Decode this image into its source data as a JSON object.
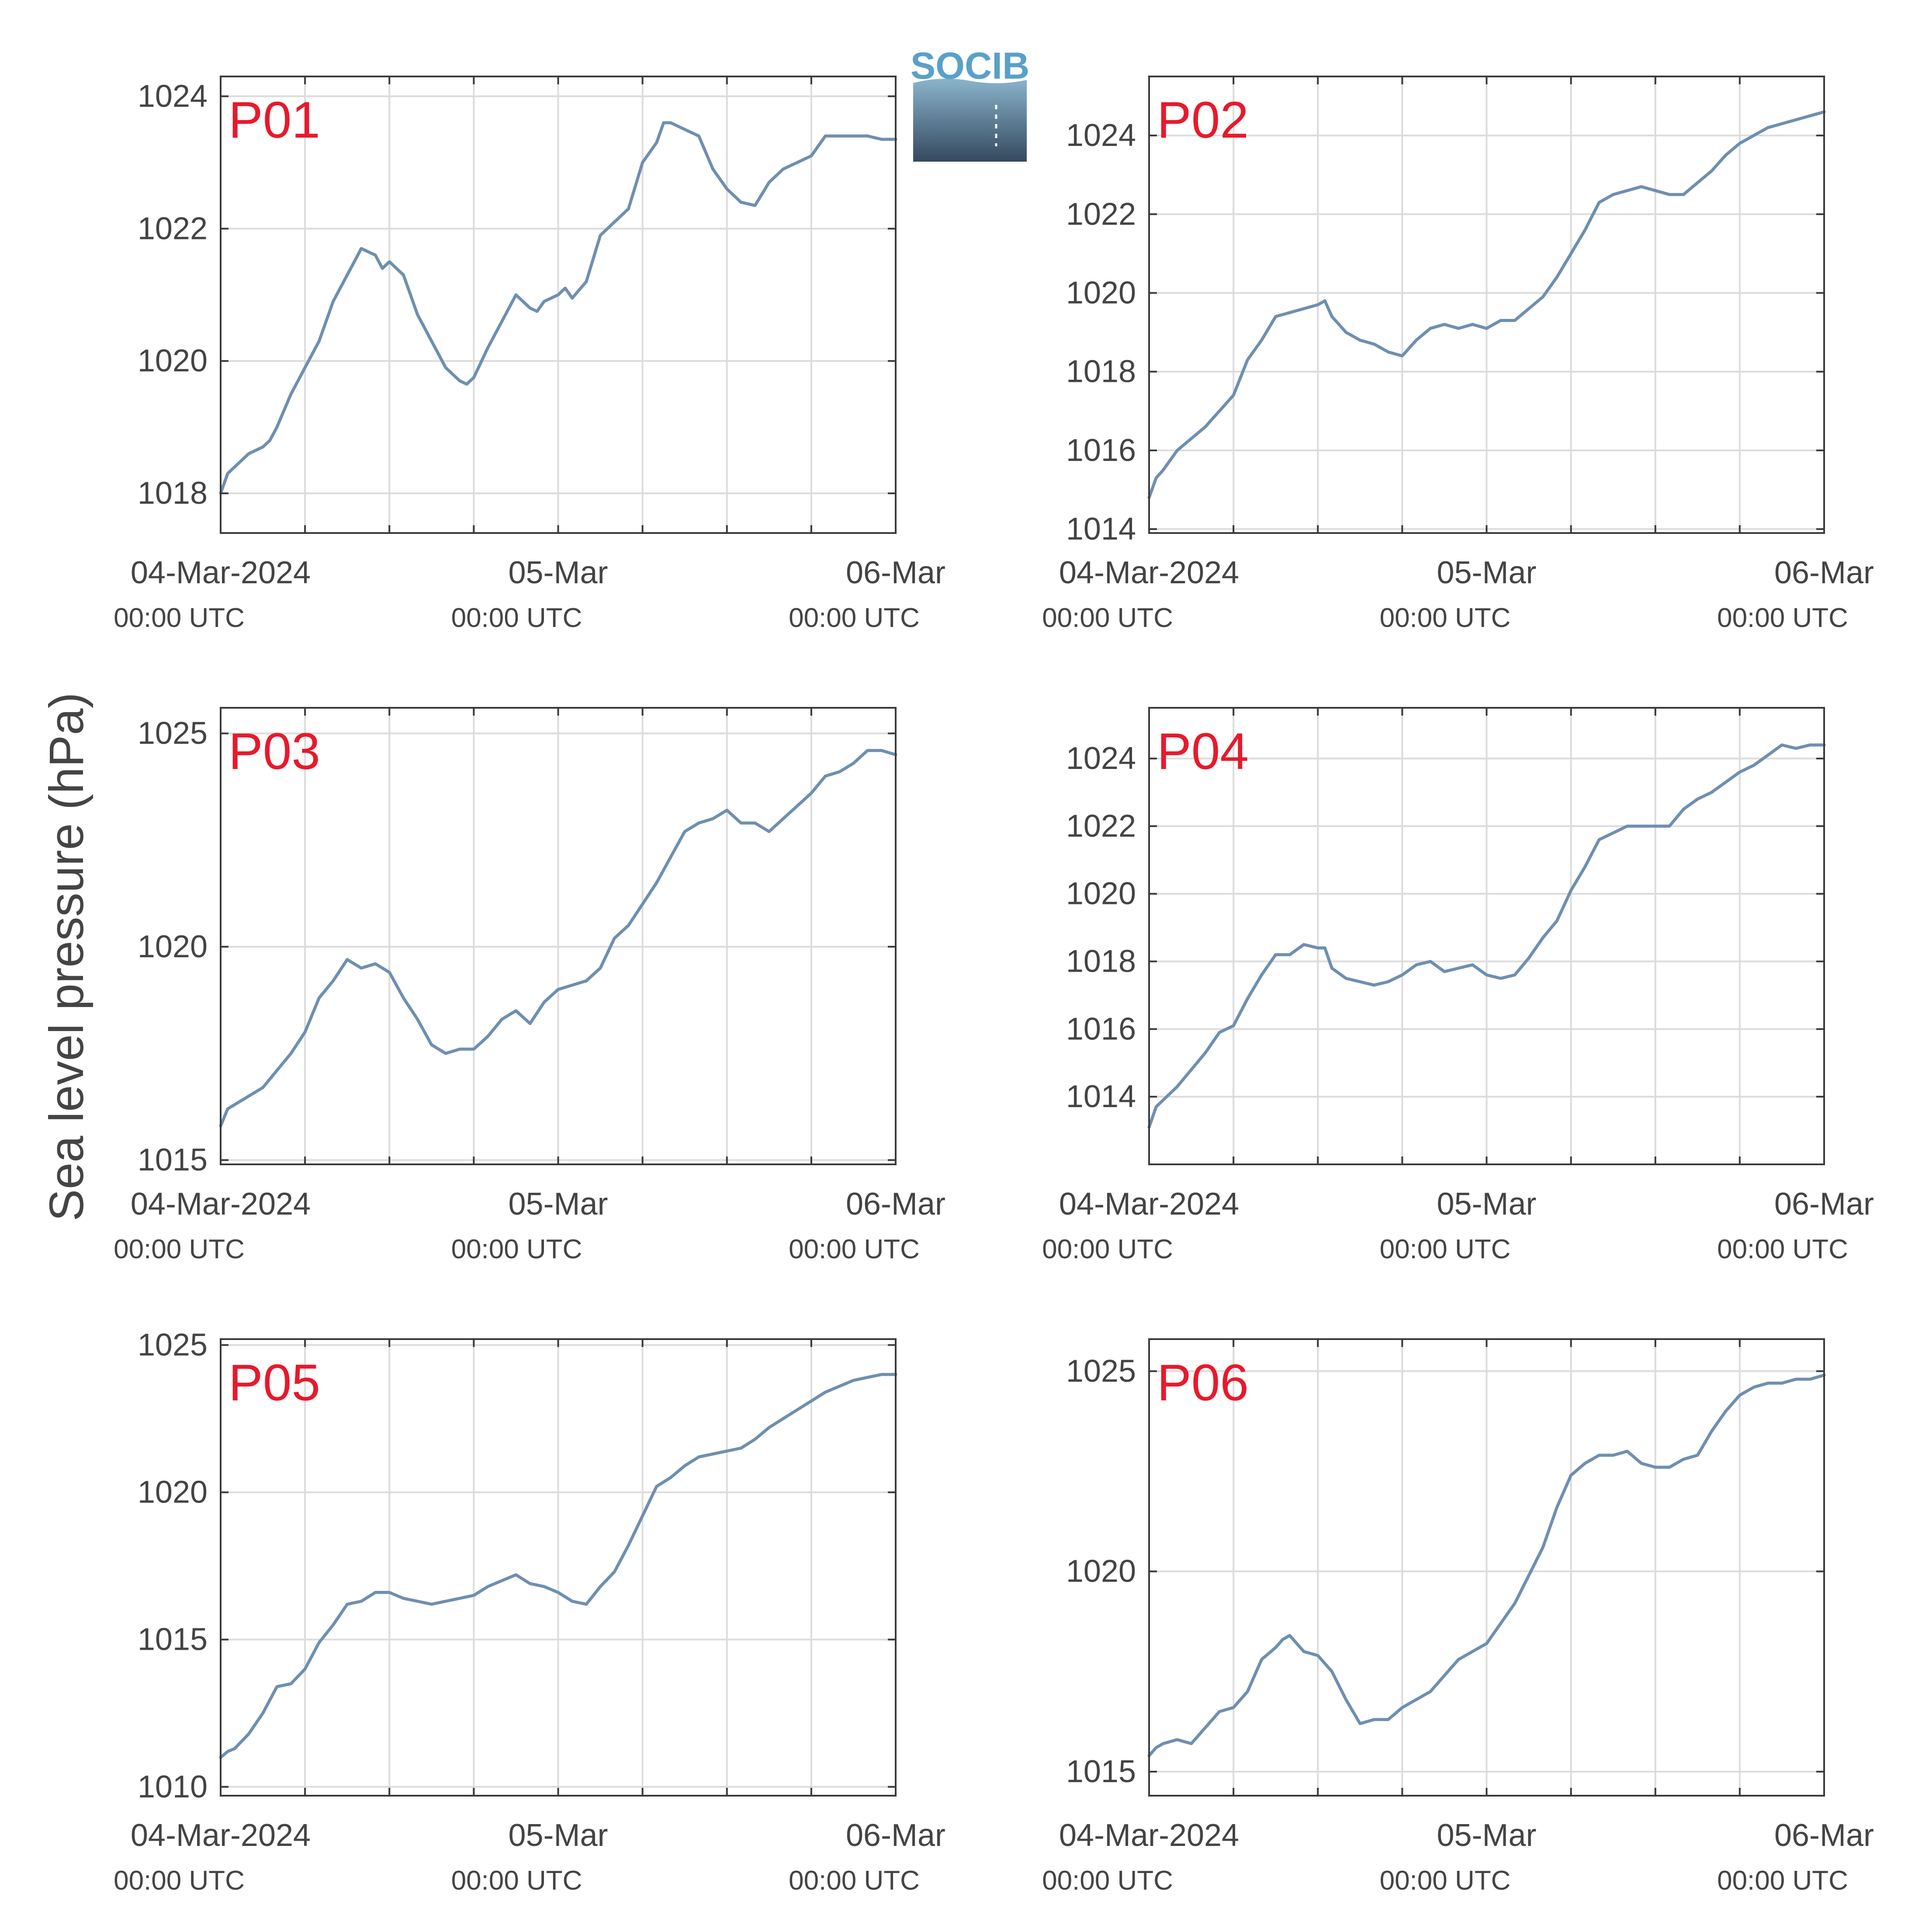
{
  "figure": {
    "ylabel": "Sea level pressure (hPa)",
    "logo_text": "SOCIB",
    "colors": {
      "line": "#6f8fb0",
      "label": "#e8192c",
      "grid": "#dcdcdc",
      "axis": "#3a3a3a",
      "text": "#444444",
      "logo_text": "#5aa0c8",
      "logo_top": "#8ab4cc",
      "logo_bottom": "#34495e"
    }
  },
  "chart_data": [
    {
      "type": "line",
      "name": "P01",
      "xlim": [
        0,
        48
      ],
      "ylim": [
        1017.4,
        1024.3
      ],
      "yticks": [
        1018,
        1020,
        1022,
        1024
      ],
      "xticks": [
        {
          "hour": 0,
          "label": "04-Mar-2024",
          "sub": "00:00 UTC"
        },
        {
          "hour": 24,
          "label": "05-Mar",
          "sub": "00:00 UTC"
        },
        {
          "hour": 48,
          "label": "06-Mar",
          "sub": "00:00 UTC"
        }
      ],
      "grid_hours": [
        6,
        12,
        18,
        24,
        30,
        36,
        42
      ],
      "x": [
        0,
        0.5,
        1,
        2,
        3,
        3.5,
        4,
        5,
        6,
        6.5,
        7,
        8,
        9,
        9.5,
        10,
        11,
        11.5,
        12,
        12.5,
        13,
        14,
        15,
        16,
        17,
        17.5,
        18,
        19,
        20,
        21,
        22,
        22.5,
        23,
        24,
        24.5,
        25,
        26,
        27,
        28,
        28.5,
        29,
        30,
        31,
        31.5,
        32,
        33,
        34,
        35,
        36,
        37,
        38,
        39,
        40,
        41,
        42,
        43,
        44,
        45,
        46,
        47,
        48
      ],
      "y": [
        1018.0,
        1018.3,
        1018.4,
        1018.6,
        1018.7,
        1018.8,
        1019.0,
        1019.5,
        1019.9,
        1020.1,
        1020.3,
        1020.9,
        1021.3,
        1021.5,
        1021.7,
        1021.6,
        1021.4,
        1021.5,
        1021.4,
        1021.3,
        1020.7,
        1020.3,
        1019.9,
        1019.7,
        1019.65,
        1019.75,
        1020.2,
        1020.6,
        1021.0,
        1020.8,
        1020.75,
        1020.9,
        1021.0,
        1021.1,
        1020.95,
        1021.2,
        1021.9,
        1022.1,
        1022.2,
        1022.3,
        1023.0,
        1023.3,
        1023.6,
        1023.6,
        1023.5,
        1023.4,
        1022.9,
        1022.6,
        1022.4,
        1022.35,
        1022.7,
        1022.9,
        1023.0,
        1023.1,
        1023.4,
        1023.4,
        1023.4,
        1023.4,
        1023.35,
        1023.35
      ]
    },
    {
      "type": "line",
      "name": "P02",
      "xlim": [
        0,
        48
      ],
      "ylim": [
        1013.9,
        1025.5
      ],
      "yticks": [
        1014,
        1016,
        1018,
        1020,
        1022,
        1024
      ],
      "xticks": [
        {
          "hour": 0,
          "label": "04-Mar-2024",
          "sub": "00:00 UTC"
        },
        {
          "hour": 24,
          "label": "05-Mar",
          "sub": "00:00 UTC"
        },
        {
          "hour": 48,
          "label": "06-Mar",
          "sub": "00:00 UTC"
        }
      ],
      "grid_hours": [
        6,
        12,
        18,
        24,
        30,
        36,
        42
      ],
      "x": [
        0,
        0.5,
        1,
        2,
        3,
        4,
        5,
        6,
        7,
        8,
        9,
        10,
        11,
        12,
        12.5,
        13,
        14,
        15,
        16,
        17,
        18,
        19,
        20,
        21,
        22,
        23,
        24,
        25,
        26,
        27,
        28,
        29,
        30,
        31,
        32,
        33,
        34,
        35,
        36,
        37,
        38,
        39,
        40,
        41,
        42,
        43,
        44,
        45,
        46,
        47,
        48
      ],
      "y": [
        1014.8,
        1015.3,
        1015.5,
        1016.0,
        1016.3,
        1016.6,
        1017.0,
        1017.4,
        1018.3,
        1018.8,
        1019.4,
        1019.5,
        1019.6,
        1019.7,
        1019.8,
        1019.4,
        1019.0,
        1018.8,
        1018.7,
        1018.5,
        1018.4,
        1018.8,
        1019.1,
        1019.2,
        1019.1,
        1019.2,
        1019.1,
        1019.3,
        1019.3,
        1019.6,
        1019.9,
        1020.4,
        1021.0,
        1021.6,
        1022.3,
        1022.5,
        1022.6,
        1022.7,
        1022.6,
        1022.5,
        1022.5,
        1022.8,
        1023.1,
        1023.5,
        1023.8,
        1024.0,
        1024.2,
        1024.3,
        1024.4,
        1024.5,
        1024.6
      ]
    },
    {
      "type": "line",
      "name": "P03",
      "xlim": [
        0,
        48
      ],
      "ylim": [
        1014.9,
        1025.6
      ],
      "yticks": [
        1015,
        1020,
        1025
      ],
      "xticks": [
        {
          "hour": 0,
          "label": "04-Mar-2024",
          "sub": "00:00 UTC"
        },
        {
          "hour": 24,
          "label": "05-Mar",
          "sub": "00:00 UTC"
        },
        {
          "hour": 48,
          "label": "06-Mar",
          "sub": "00:00 UTC"
        }
      ],
      "grid_hours": [
        6,
        12,
        18,
        24,
        30,
        36,
        42
      ],
      "x": [
        0,
        0.5,
        1,
        2,
        3,
        4,
        5,
        6,
        7,
        8,
        9,
        10,
        11,
        12,
        13,
        14,
        15,
        16,
        17,
        18,
        19,
        20,
        21,
        22,
        23,
        24,
        25,
        26,
        27,
        28,
        29,
        30,
        31,
        32,
        33,
        34,
        35,
        36,
        37,
        38,
        39,
        40,
        41,
        42,
        43,
        44,
        45,
        46,
        47,
        48
      ],
      "y": [
        1015.8,
        1016.2,
        1016.3,
        1016.5,
        1016.7,
        1017.1,
        1017.5,
        1018.0,
        1018.8,
        1019.2,
        1019.7,
        1019.5,
        1019.6,
        1019.4,
        1018.8,
        1018.3,
        1017.7,
        1017.5,
        1017.6,
        1017.6,
        1017.9,
        1018.3,
        1018.5,
        1018.2,
        1018.7,
        1019.0,
        1019.1,
        1019.2,
        1019.5,
        1020.2,
        1020.5,
        1021.0,
        1021.5,
        1022.1,
        1022.7,
        1022.9,
        1023.0,
        1023.2,
        1022.9,
        1022.9,
        1022.7,
        1023.0,
        1023.3,
        1023.6,
        1024.0,
        1024.1,
        1024.3,
        1024.6,
        1024.6,
        1024.5
      ]
    },
    {
      "type": "line",
      "name": "P04",
      "xlim": [
        0,
        48
      ],
      "ylim": [
        1012.0,
        1025.5
      ],
      "yticks": [
        1014,
        1016,
        1018,
        1020,
        1022,
        1024
      ],
      "xticks": [
        {
          "hour": 0,
          "label": "04-Mar-2024",
          "sub": "00:00 UTC"
        },
        {
          "hour": 24,
          "label": "05-Mar",
          "sub": "00:00 UTC"
        },
        {
          "hour": 48,
          "label": "06-Mar",
          "sub": "00:00 UTC"
        }
      ],
      "grid_hours": [
        6,
        12,
        18,
        24,
        30,
        36,
        42
      ],
      "x": [
        0,
        0.5,
        1,
        2,
        3,
        4,
        5,
        6,
        7,
        8,
        9,
        10,
        11,
        12,
        12.5,
        13,
        14,
        15,
        16,
        17,
        18,
        19,
        20,
        21,
        22,
        23,
        24,
        25,
        26,
        27,
        28,
        29,
        30,
        31,
        32,
        33,
        34,
        35,
        36,
        37,
        38,
        39,
        40,
        41,
        42,
        43,
        44,
        45,
        46,
        47,
        48
      ],
      "y": [
        1013.1,
        1013.7,
        1013.9,
        1014.3,
        1014.8,
        1015.3,
        1015.9,
        1016.1,
        1016.9,
        1017.6,
        1018.2,
        1018.2,
        1018.5,
        1018.4,
        1018.4,
        1017.8,
        1017.5,
        1017.4,
        1017.3,
        1017.4,
        1017.6,
        1017.9,
        1018.0,
        1017.7,
        1017.8,
        1017.9,
        1017.6,
        1017.5,
        1017.6,
        1018.1,
        1018.7,
        1019.2,
        1020.1,
        1020.8,
        1021.6,
        1021.8,
        1022.0,
        1022.0,
        1022.0,
        1022.0,
        1022.5,
        1022.8,
        1023.0,
        1023.3,
        1023.6,
        1023.8,
        1024.1,
        1024.4,
        1024.3,
        1024.4,
        1024.4
      ]
    },
    {
      "type": "line",
      "name": "P05",
      "xlim": [
        0,
        48
      ],
      "ylim": [
        1009.7,
        1025.2
      ],
      "yticks": [
        1010,
        1015,
        1020,
        1025
      ],
      "xticks": [
        {
          "hour": 0,
          "label": "04-Mar-2024",
          "sub": "00:00 UTC"
        },
        {
          "hour": 24,
          "label": "05-Mar",
          "sub": "00:00 UTC"
        },
        {
          "hour": 48,
          "label": "06-Mar",
          "sub": "00:00 UTC"
        }
      ],
      "grid_hours": [
        6,
        12,
        18,
        24,
        30,
        36,
        42
      ],
      "x": [
        0,
        0.5,
        1,
        2,
        3,
        4,
        5,
        6,
        7,
        8,
        9,
        10,
        11,
        12,
        13,
        14,
        15,
        16,
        17,
        18,
        19,
        20,
        21,
        22,
        23,
        24,
        25,
        26,
        27,
        28,
        29,
        30,
        31,
        32,
        33,
        34,
        35,
        36,
        37,
        38,
        39,
        40,
        41,
        42,
        43,
        44,
        45,
        46,
        47,
        48
      ],
      "y": [
        1011.0,
        1011.2,
        1011.3,
        1011.8,
        1012.5,
        1013.4,
        1013.5,
        1014.0,
        1014.9,
        1015.5,
        1016.2,
        1016.3,
        1016.6,
        1016.6,
        1016.4,
        1016.3,
        1016.2,
        1016.3,
        1016.4,
        1016.5,
        1016.8,
        1017.0,
        1017.2,
        1016.9,
        1016.8,
        1016.6,
        1016.3,
        1016.2,
        1016.8,
        1017.3,
        1018.2,
        1019.2,
        1020.2,
        1020.5,
        1020.9,
        1021.2,
        1021.3,
        1021.4,
        1021.5,
        1021.8,
        1022.2,
        1022.5,
        1022.8,
        1023.1,
        1023.4,
        1023.6,
        1023.8,
        1023.9,
        1024.0,
        1024.0
      ]
    },
    {
      "type": "line",
      "name": "P06",
      "xlim": [
        0,
        48
      ],
      "ylim": [
        1014.4,
        1025.8
      ],
      "yticks": [
        1015,
        1020,
        1025
      ],
      "xticks": [
        {
          "hour": 0,
          "label": "04-Mar-2024",
          "sub": "00:00 UTC"
        },
        {
          "hour": 24,
          "label": "05-Mar",
          "sub": "00:00 UTC"
        },
        {
          "hour": 48,
          "label": "06-Mar",
          "sub": "00:00 UTC"
        }
      ],
      "grid_hours": [
        6,
        12,
        18,
        24,
        30,
        36,
        42
      ],
      "x": [
        0,
        0.5,
        1,
        2,
        3,
        4,
        5,
        6,
        7,
        8,
        9,
        9.5,
        10,
        11,
        12,
        13,
        14,
        15,
        16,
        17,
        18,
        19,
        20,
        21,
        22,
        23,
        24,
        25,
        26,
        27,
        28,
        29,
        30,
        31,
        32,
        33,
        34,
        35,
        36,
        37,
        38,
        39,
        40,
        41,
        42,
        43,
        44,
        45,
        46,
        47,
        48
      ],
      "y": [
        1015.4,
        1015.6,
        1015.7,
        1015.8,
        1015.7,
        1016.1,
        1016.5,
        1016.6,
        1017.0,
        1017.8,
        1018.1,
        1018.3,
        1018.4,
        1018.0,
        1017.9,
        1017.5,
        1016.8,
        1016.2,
        1016.3,
        1016.3,
        1016.6,
        1016.8,
        1017.0,
        1017.4,
        1017.8,
        1018.0,
        1018.2,
        1018.7,
        1019.2,
        1019.9,
        1020.6,
        1021.6,
        1022.4,
        1022.7,
        1022.9,
        1022.9,
        1023.0,
        1022.7,
        1022.6,
        1022.6,
        1022.8,
        1022.9,
        1023.5,
        1024.0,
        1024.4,
        1024.6,
        1024.7,
        1024.7,
        1024.8,
        1024.8,
        1024.9
      ]
    }
  ]
}
